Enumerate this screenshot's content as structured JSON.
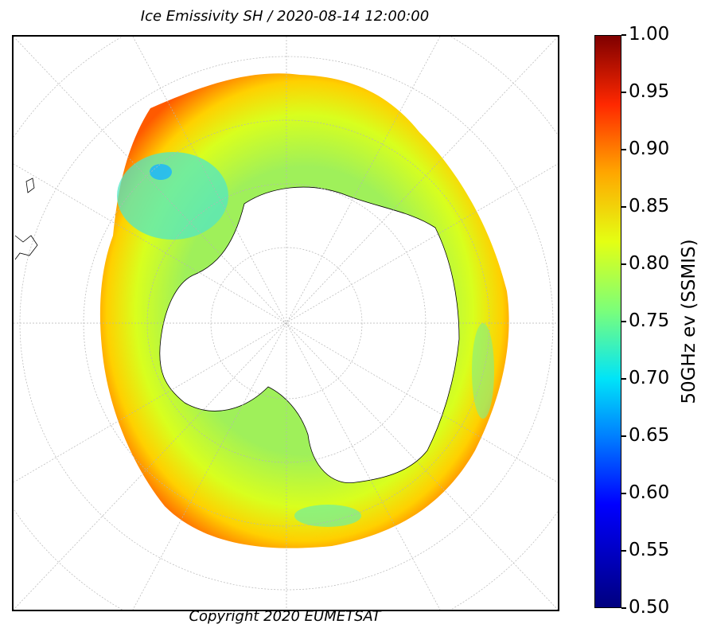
{
  "title": "Ice Emissivity SH / 2020-08-14 12:00:00",
  "copyright": "Copyright 2020 EUMETSAT",
  "map": {
    "projection": "south-polar-stereographic",
    "graticule": "dashed grey",
    "background": "#ffffff",
    "coastline_color": "#000000"
  },
  "colorbar": {
    "label": "50GHz ev (SSMIS)",
    "colormap": "jet",
    "min": 0.5,
    "max": 1.0,
    "ticks": [
      "0.50",
      "0.55",
      "0.60",
      "0.65",
      "0.70",
      "0.75",
      "0.80",
      "0.85",
      "0.90",
      "0.95",
      "1.00"
    ]
  }
}
